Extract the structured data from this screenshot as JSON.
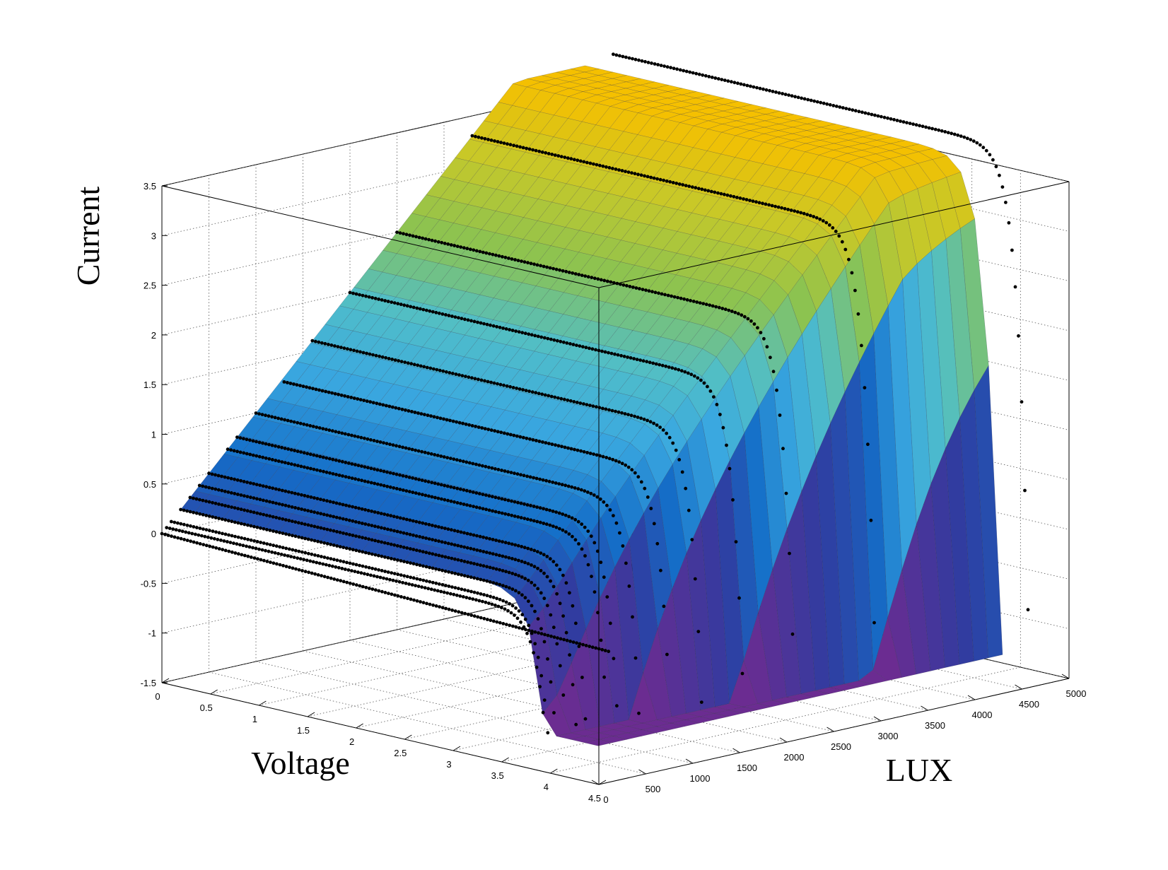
{
  "chart_data": {
    "type": "surface3d",
    "xlabel": "Voltage",
    "ylabel": "LUX",
    "zlabel": "Current",
    "xlim": [
      0,
      4.5
    ],
    "ylim": [
      0,
      5000
    ],
    "zlim": [
      -1.5,
      3.5
    ],
    "x_ticks": [
      "0",
      "0.5",
      "1",
      "1.5",
      "2",
      "2.5",
      "3",
      "3.5",
      "4",
      "4.5"
    ],
    "y_ticks": [
      "0",
      "500",
      "1000",
      "1500",
      "2000",
      "2500",
      "3000",
      "3500",
      "4000",
      "4500",
      "5000"
    ],
    "z_ticks": [
      "-1.5",
      "-1",
      "-0.5",
      "0",
      "0.5",
      "1",
      "1.5",
      "2",
      "2.5",
      "3",
      "3.5"
    ],
    "grid": true,
    "colormap": "parula",
    "colors": {
      "surface_low": "#6b2c91",
      "surface_mid": "#3aa8e0",
      "surface_high": "#f5c000",
      "measured": "#000000"
    },
    "series": [
      {
        "lux": 0,
        "isc": 0.0,
        "voc": 3.4
      },
      {
        "lux": 50,
        "isc": 0.05,
        "voc": 3.55
      },
      {
        "lux": 100,
        "isc": 0.1,
        "voc": 3.6
      },
      {
        "lux": 200,
        "isc": 0.2,
        "voc": 3.65
      },
      {
        "lux": 300,
        "isc": 0.3,
        "voc": 3.7
      },
      {
        "lux": 400,
        "isc": 0.4,
        "voc": 3.73
      },
      {
        "lux": 500,
        "isc": 0.5,
        "voc": 3.75
      },
      {
        "lux": 700,
        "isc": 0.7,
        "voc": 3.8
      },
      {
        "lux": 800,
        "isc": 0.8,
        "voc": 3.82
      },
      {
        "lux": 1000,
        "isc": 1.0,
        "voc": 3.86
      },
      {
        "lux": 1300,
        "isc": 1.25,
        "voc": 3.9
      },
      {
        "lux": 1600,
        "isc": 1.6,
        "voc": 3.95
      },
      {
        "lux": 2000,
        "isc": 2.0,
        "voc": 4.0
      },
      {
        "lux": 2500,
        "isc": 2.5,
        "voc": 4.05
      },
      {
        "lux": 3300,
        "isc": 3.3,
        "voc": 4.12
      },
      {
        "lux": 4800,
        "isc": 3.8,
        "voc": 4.25
      }
    ]
  }
}
